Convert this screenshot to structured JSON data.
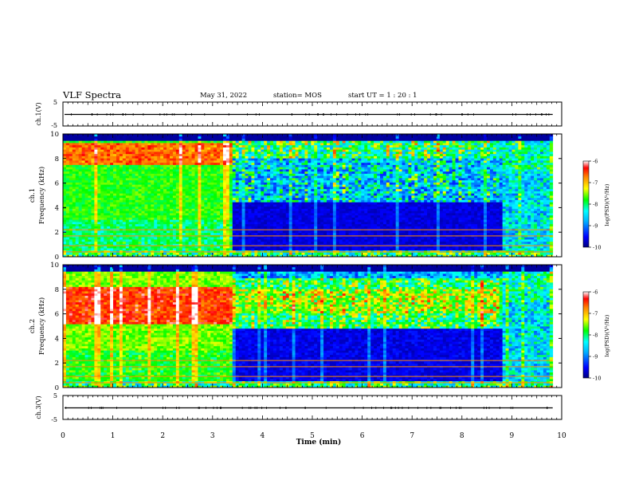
{
  "header": {
    "title": "VLF Spectra",
    "date": "May 31, 2022",
    "station": "station= MOS",
    "start": "start  UT =   1 : 20 : 1"
  },
  "chart_data": [
    {
      "type": "line",
      "name": "ch1-waveform",
      "ylabel": "ch.1(V)",
      "ylim": [
        -5,
        5
      ],
      "yticks": [
        "5",
        "-5"
      ],
      "x": [
        0,
        10
      ],
      "y": [
        0,
        0
      ]
    },
    {
      "type": "heatmap",
      "name": "ch1-spectrogram",
      "ylabel": "ch.1\nFrequency (kHz)",
      "ylim": [
        0,
        10
      ],
      "yticks": [
        "0",
        "2",
        "4",
        "6",
        "8",
        "10"
      ],
      "xlim": [
        0,
        10
      ],
      "data_end_min": 9.82,
      "transition_min": 3.37,
      "recovery_min": 8.8,
      "colorbar": {
        "label": "log(PSD)(V²/Hz)",
        "ticks": [
          "-6",
          "-7",
          "-8",
          "-9",
          "-10"
        ],
        "range": [
          -10,
          -6
        ]
      }
    },
    {
      "type": "heatmap",
      "name": "ch2-spectrogram",
      "ylabel": "ch.2\nFrequency (kHz)",
      "ylim": [
        0,
        10
      ],
      "yticks": [
        "0",
        "2",
        "4",
        "6",
        "8",
        "10"
      ],
      "xlim": [
        0,
        10
      ],
      "data_end_min": 9.82,
      "transition_min": 3.37,
      "recovery_min": 8.8,
      "colorbar": {
        "label": "log(PSD)(V²/Hz)",
        "ticks": [
          "-6",
          "-7",
          "-8",
          "-9",
          "-10"
        ],
        "range": [
          -10,
          -6
        ]
      }
    },
    {
      "type": "line",
      "name": "ch3-waveform",
      "ylabel": "ch.3(V)",
      "ylim": [
        -5,
        5
      ],
      "yticks": [
        "5",
        "-5"
      ],
      "x": [
        0,
        10
      ],
      "y": [
        0,
        0
      ]
    }
  ],
  "x_axis": {
    "label": "Time  (min)",
    "range": [
      0,
      10
    ],
    "ticks": [
      "0",
      "1",
      "2",
      "3",
      "4",
      "5",
      "6",
      "7",
      "8",
      "9",
      "10"
    ]
  },
  "colors": {
    "colormap": [
      "#000080",
      "#0000ff",
      "#00b0ff",
      "#00ffff",
      "#00ff00",
      "#ffff00",
      "#ff8000",
      "#ff0000",
      "#ffffff"
    ]
  }
}
